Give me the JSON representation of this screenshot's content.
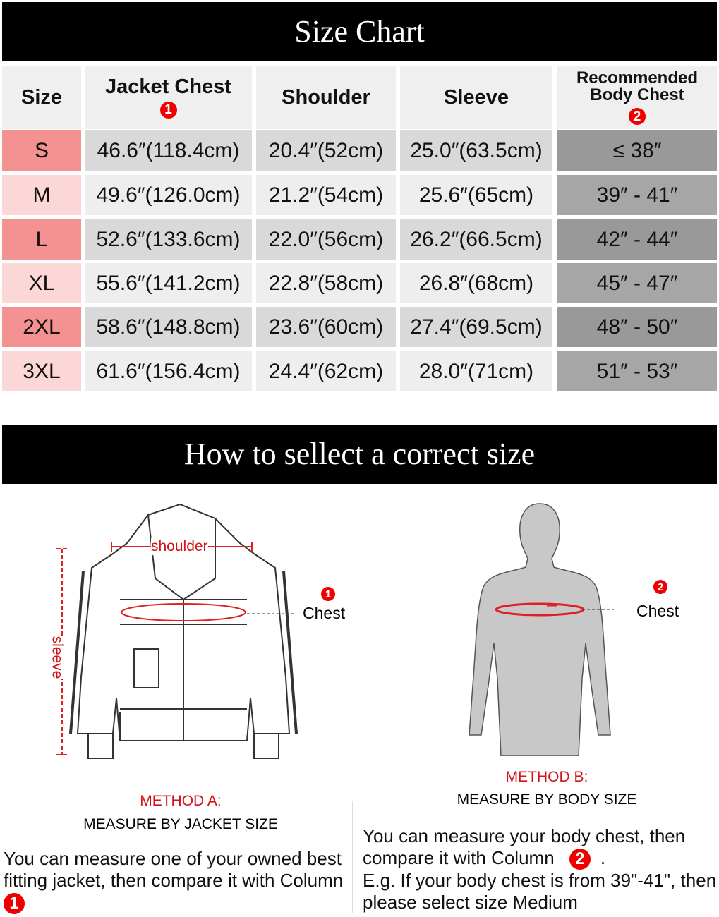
{
  "title": "Size Chart",
  "columns": [
    {
      "label": "Size"
    },
    {
      "label": "Jacket Chest",
      "badge": "1"
    },
    {
      "label": "Shoulder"
    },
    {
      "label": "Sleeve"
    },
    {
      "label": "Recommended Body Chest",
      "badge": "2"
    }
  ],
  "rows": [
    [
      "S",
      "46.6″(118.4cm)",
      "20.4″(52cm)",
      "25.0″(63.5cm)",
      "≤ 38″"
    ],
    [
      "M",
      "49.6″(126.0cm)",
      "21.2″(54cm)",
      "25.6″(65cm)",
      "39″ - 41″"
    ],
    [
      "L",
      "52.6″(133.6cm)",
      "22.0″(56cm)",
      "26.2″(66.5cm)",
      "42″ - 44″"
    ],
    [
      "XL",
      "55.6″(141.2cm)",
      "22.8″(58cm)",
      "26.8″(68cm)",
      "45″ - 47″"
    ],
    [
      "2XL",
      "58.6″(148.8cm)",
      "23.6″(60cm)",
      "27.4″(69.5cm)",
      "48″ - 50″"
    ],
    [
      "3XL",
      "61.6″(156.4cm)",
      "24.4″(62cm)",
      "28.0″(71cm)",
      "51″ - 53″"
    ]
  ],
  "colors": {
    "size_dark": "#f49191",
    "size_light": "#fbd7d7",
    "data_dark": "#d9d9d9",
    "data_light": "#eeeeee",
    "rec_dark": "#999999",
    "rec_light": "#a6a6a6",
    "accent": "#e00000"
  },
  "guide_title": "How to sellect a correct size",
  "jacket": {
    "shoulder_label": "shoulder",
    "sleeve_label": "sleeve",
    "chest_label": "Chest",
    "badge": "1"
  },
  "body": {
    "chest_label": "Chest",
    "badge": "2"
  },
  "method_a": {
    "title": "METHOD A:",
    "subtitle": "MEASURE BY JACKET SIZE",
    "text": "You can measure one of your owned best fitting jacket, then compare it with Column",
    "badge": "1"
  },
  "method_b": {
    "title": "METHOD B:",
    "subtitle": "MEASURE BY BODY SIZE",
    "text1": "You can measure your body chest, then compare it with Column",
    "badge": "2",
    "text1_end": ".",
    "text2": "E.g. If your body chest is from 39\"-41\", then please select size Medium"
  }
}
